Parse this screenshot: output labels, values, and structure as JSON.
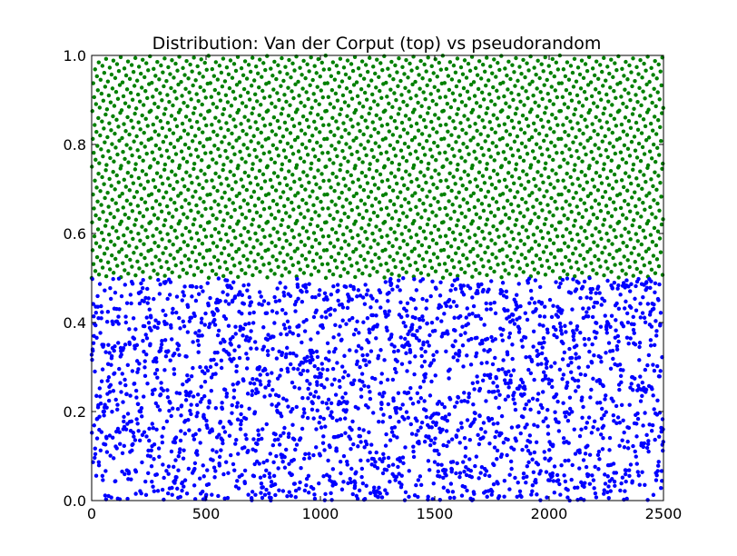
{
  "chart_data": {
    "type": "scatter",
    "title": "Distribution: Van der Corput (top) vs pseudorandom",
    "xlabel": "",
    "ylabel": "",
    "xlim": [
      0,
      2500
    ],
    "ylim": [
      0.0,
      1.0
    ],
    "xticks": [
      0,
      500,
      1000,
      1500,
      2000,
      2500
    ],
    "xtick_labels": [
      "0",
      "500",
      "1000",
      "1500",
      "2000",
      "2500"
    ],
    "yticks": [
      0.0,
      0.2,
      0.4,
      0.6,
      0.8,
      1.0
    ],
    "ytick_labels": [
      "0.0",
      "0.2",
      "0.4",
      "0.6",
      "0.8",
      "1.0"
    ],
    "grid": false,
    "legend": "none",
    "series": [
      {
        "color": "#008000",
        "n_points": 2500,
        "x_start": 0,
        "x_step": 1,
        "y_formula": "0.5 + 0.5 * van_der_corput_base2(i)",
        "y_range": [
          0.5,
          1.0
        ]
      },
      {
        "color": "#0000ff",
        "n_points": 2500,
        "x_start": 0,
        "x_step": 1,
        "y_formula": "0.5 * uniform_random(i)",
        "y_range": [
          0.0,
          0.5
        ]
      }
    ]
  }
}
